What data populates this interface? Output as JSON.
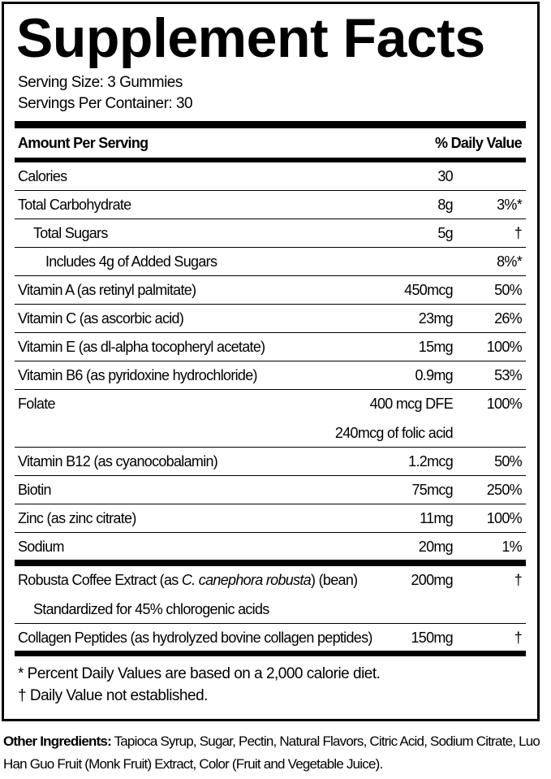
{
  "title": "Supplement Facts",
  "serving_size": "Serving Size: 3 Gummies",
  "servings_per_container": "Servings Per Container: 30",
  "header": {
    "amount": "Amount Per Serving",
    "dv": "% Daily Value"
  },
  "rows": [
    {
      "name": "Calories",
      "amount": "30"
    },
    {
      "name": "Total Carbohydrate",
      "amount": "8g",
      "dv": "3%*",
      "sub_rows": [
        {
          "name": "Total Sugars",
          "amount": "5g",
          "dv": "†",
          "sub_rows": [
            {
              "name": "Includes 4g of Added Sugars",
              "dv": "8%*"
            }
          ]
        }
      ]
    },
    {
      "name": "Vitamin A (as retinyl palmitate)",
      "amount": "450mcg",
      "dv": "50%"
    },
    {
      "name": "Vitamin C (as ascorbic acid)",
      "amount": "23mg",
      "dv": "26%"
    },
    {
      "name": "Vitamin E (as dl-alpha tocopheryl acetate)",
      "amount": "15mg",
      "dv": "100%"
    },
    {
      "name": "Vitamin B6 (as pyridoxine hydrochloride)",
      "amount": "0.9mg",
      "dv": "53%"
    },
    {
      "name": "Folate",
      "amount": "400 mcg DFE",
      "dv": "100%",
      "amount_note": "240mcg of folic acid"
    },
    {
      "name": "Vitamin B12 (as cyanocobalamin)",
      "amount": "1.2mcg",
      "dv": "50%"
    },
    {
      "name": "Biotin",
      "amount": "75mcg",
      "dv": "250%"
    },
    {
      "name": "Zinc (as zinc citrate)",
      "amount": "11mg",
      "dv": "100%"
    },
    {
      "name": "Sodium",
      "amount": "20mg",
      "dv": "1%"
    }
  ],
  "other_rows": [
    {
      "name_before": "Robusta Coffee Extract (as ",
      "name_italic": "C. canephora robusta",
      "name_after": ") (bean)",
      "amount": "200mg",
      "dv": "†",
      "description": "Standardized for 45% chlorogenic acids"
    },
    {
      "name": "Collagen Peptides (as hydrolyzed bovine collagen peptides)",
      "amount": "150mg",
      "dv": "†"
    }
  ],
  "footnotes": [
    "* Percent Daily Values are based on a 2,000 calorie diet.",
    "† Daily Value not established."
  ],
  "other_ingredients": {
    "label": "Other Ingredients:",
    "text": "Tapioca Syrup, Sugar, Pectin, Natural Flavors, Citric Acid, Sodium Citrate, Luo Han Guo Fruit (Monk Fruit) Extract, Color (Fruit and Vegetable Juice)."
  }
}
